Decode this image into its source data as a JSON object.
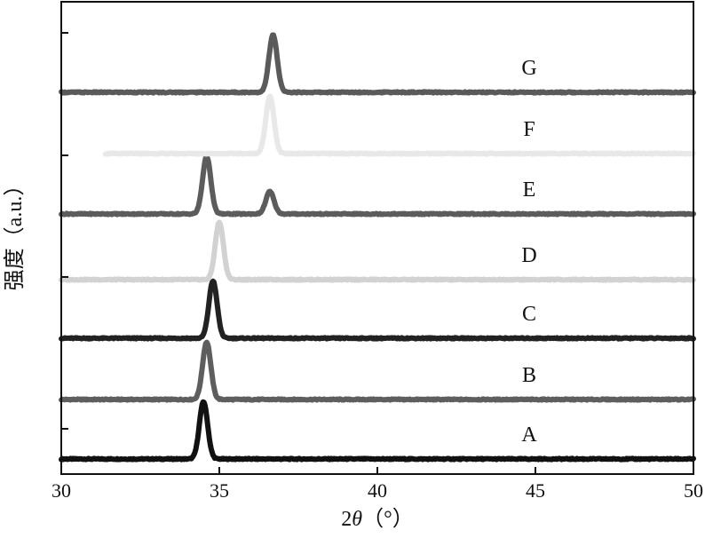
{
  "chart_data": {
    "type": "line",
    "xlabel_prefix": "2",
    "xlabel_symbol": "θ",
    "xlabel_unit": "（°）",
    "ylabel": "强度（a.u.）",
    "xlim": [
      30,
      50
    ],
    "xticks": [
      "30",
      "35",
      "40",
      "45",
      "50"
    ],
    "grid": false,
    "legend": "none",
    "series": [
      {
        "name": "A",
        "color": "#111111",
        "peaks": [
          {
            "x": 34.5,
            "h": 0.95
          }
        ],
        "x_start": 30
      },
      {
        "name": "B",
        "color": "#5e5e5e",
        "peaks": [
          {
            "x": 34.6,
            "h": 0.95
          }
        ],
        "x_start": 30
      },
      {
        "name": "C",
        "color": "#222222",
        "peaks": [
          {
            "x": 34.8,
            "h": 0.95
          }
        ],
        "x_start": 30
      },
      {
        "name": "D",
        "color": "#d2d2d2",
        "peaks": [
          {
            "x": 35.0,
            "h": 0.95
          }
        ],
        "x_start": 30
      },
      {
        "name": "E",
        "color": "#5c5c5c",
        "peaks": [
          {
            "x": 34.6,
            "h": 0.95
          },
          {
            "x": 36.6,
            "h": 0.37
          }
        ],
        "x_start": 30
      },
      {
        "name": "F",
        "color": "#e8e8e8",
        "peaks": [
          {
            "x": 36.6,
            "h": 0.95
          }
        ],
        "x_start": 31.4
      },
      {
        "name": "G",
        "color": "#5a5a5a",
        "peaks": [
          {
            "x": 36.7,
            "h": 0.95
          }
        ],
        "x_start": 30
      }
    ]
  }
}
